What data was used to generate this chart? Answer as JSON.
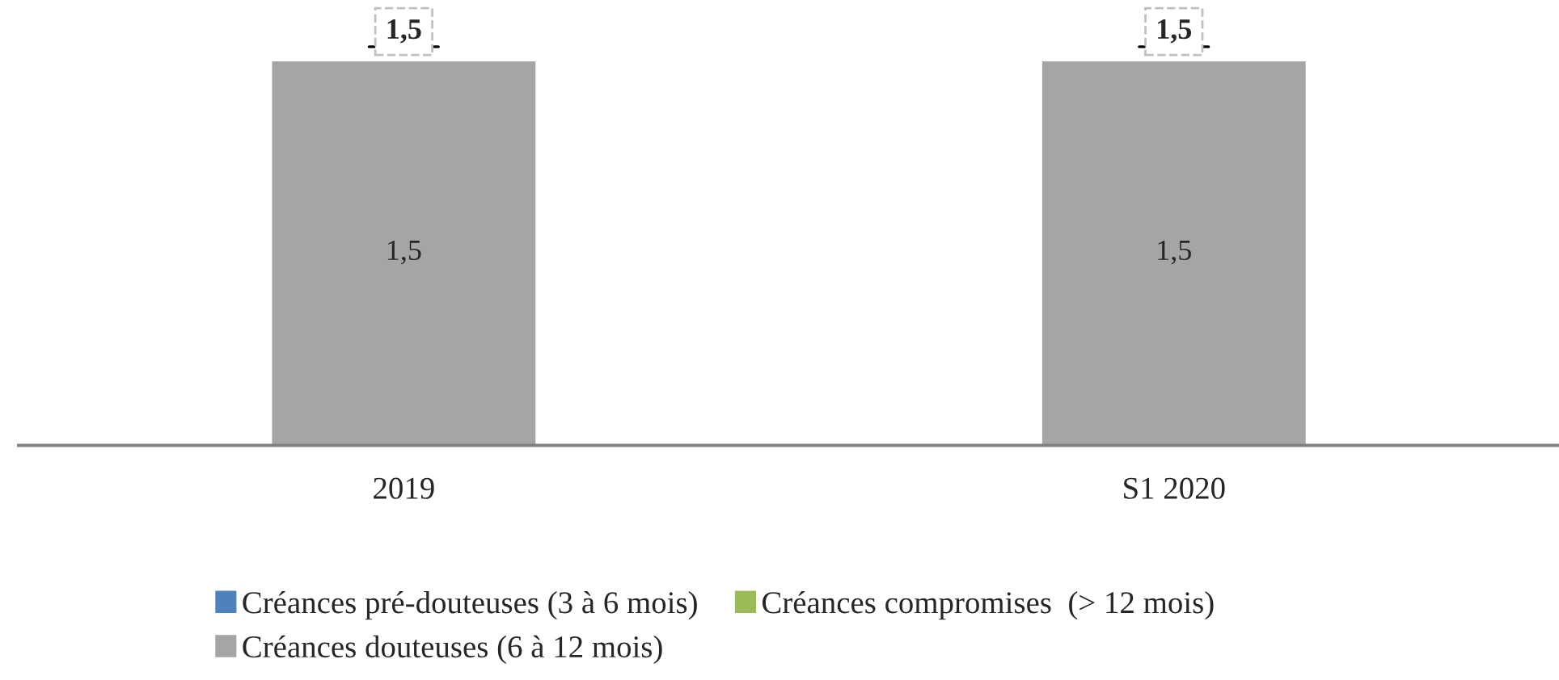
{
  "chart_data": {
    "type": "bar",
    "stacked": true,
    "categories": [
      "2019",
      "S1 2020"
    ],
    "series": [
      {
        "name": "Créances pré-douteuses (3 à 6 mois)",
        "color": "#4f81bd",
        "values": [
          null,
          null
        ]
      },
      {
        "name": "Créances douteuses (6 à 12 mois)",
        "color": "#a5a5a5",
        "values": [
          1.5,
          1.5
        ],
        "value_labels": [
          "1,5",
          "1,5"
        ]
      },
      {
        "name": "Créances compromises  (> 12 mois)",
        "color": "#9bbb59",
        "values": [
          null,
          null
        ]
      }
    ],
    "totals": [
      "1,5",
      "1,5"
    ],
    "legend": "bottom",
    "grid": false
  }
}
